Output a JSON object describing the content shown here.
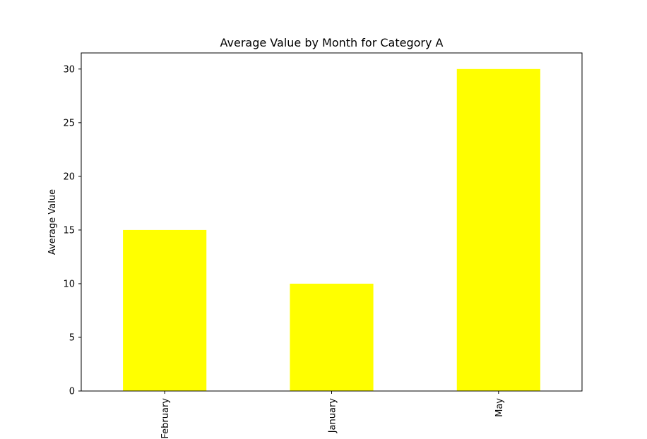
{
  "chart_data": {
    "type": "bar",
    "title": "Average Value by Month for Category A",
    "xlabel": "",
    "ylabel": "Average Value",
    "categories": [
      "February",
      "January",
      "May"
    ],
    "values": [
      15,
      10,
      30
    ],
    "ylim": [
      0,
      31.5
    ],
    "yticks": [
      0,
      5,
      10,
      15,
      20,
      25,
      30
    ],
    "bar_color": "#ffff00",
    "grid": false,
    "legend": "none"
  }
}
